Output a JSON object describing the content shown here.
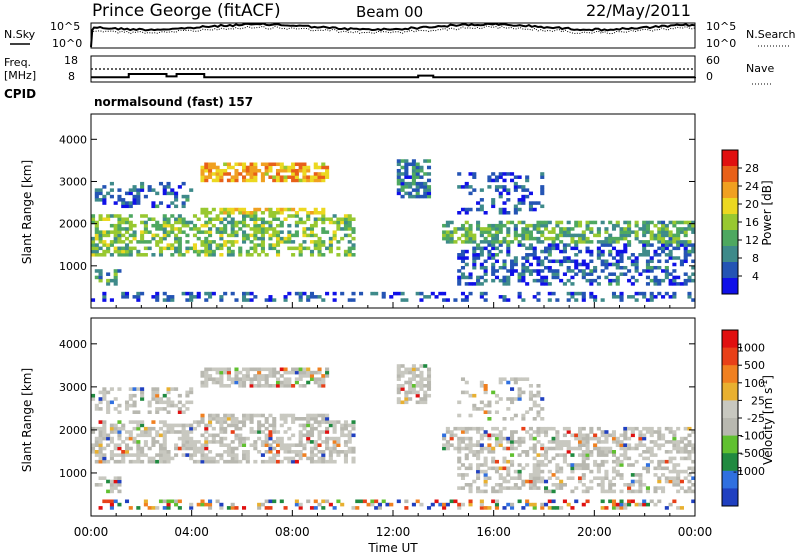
{
  "header": {
    "station": "Prince George (fitACF)",
    "beam": "Beam 00",
    "date": "22/May/2011"
  },
  "top_panels": {
    "nsky_label": "N.Sky",
    "nsearch_label": "N.Search",
    "noise_ticks_left": [
      "10^5",
      "10^0"
    ],
    "noise_ticks_right": [
      "10^5",
      "10^0"
    ],
    "freq_label": "Freq.",
    "freq_unit": "[MHz]",
    "freq_ticks": [
      "18",
      "8"
    ],
    "nave_label": "Nave",
    "nave_ticks": [
      "60",
      "0"
    ],
    "cpid_label": "CPID",
    "cpid_text": "normalsound (fast) 157"
  },
  "chart_data": [
    {
      "type": "heatmap",
      "title": "",
      "xlabel": "Time UT",
      "ylabel": "Slant Range [km]",
      "x_tick_labels": [
        "00:00",
        "04:00",
        "08:00",
        "12:00",
        "16:00",
        "20:00",
        "00:00"
      ],
      "y_tick_labels": [
        "1000",
        "2000",
        "3000",
        "4000"
      ],
      "colorbar_label": "Power [dB]",
      "colorbar_ticks": [
        "4",
        "8",
        "12",
        "16",
        "20",
        "24",
        "28"
      ],
      "colorscale": [
        "#1010e8",
        "#2454b4",
        "#3e8a8a",
        "#4ea860",
        "#98c830",
        "#ecd820",
        "#f0a020",
        "#e86018",
        "#e01010"
      ],
      "ylim": [
        0,
        4600
      ],
      "xlim_hours": [
        0,
        24
      ]
    },
    {
      "type": "heatmap",
      "title": "",
      "xlabel": "Time UT",
      "ylabel": "Slant Range [km]",
      "x_tick_labels": [
        "00:00",
        "04:00",
        "08:00",
        "12:00",
        "16:00",
        "20:00",
        "00:00"
      ],
      "y_tick_labels": [
        "1000",
        "2000",
        "3000",
        "4000"
      ],
      "colorbar_label": "Velocity [m s",
      "colorbar_label_sup": "-1",
      "colorbar_label_end": "]",
      "colorbar_ticks": [
        "1000",
        "500",
        "100",
        "25",
        "-25",
        "-100",
        "-500",
        "-1000"
      ],
      "colorscale": [
        "#2040c0",
        "#3070e0",
        "#208a40",
        "#60c030",
        "#b8b8b0",
        "#c8c8c0",
        "#e8b030",
        "#f08020",
        "#e84018",
        "#e01010"
      ],
      "ylim": [
        0,
        4600
      ],
      "xlim_hours": [
        0,
        24
      ]
    }
  ]
}
